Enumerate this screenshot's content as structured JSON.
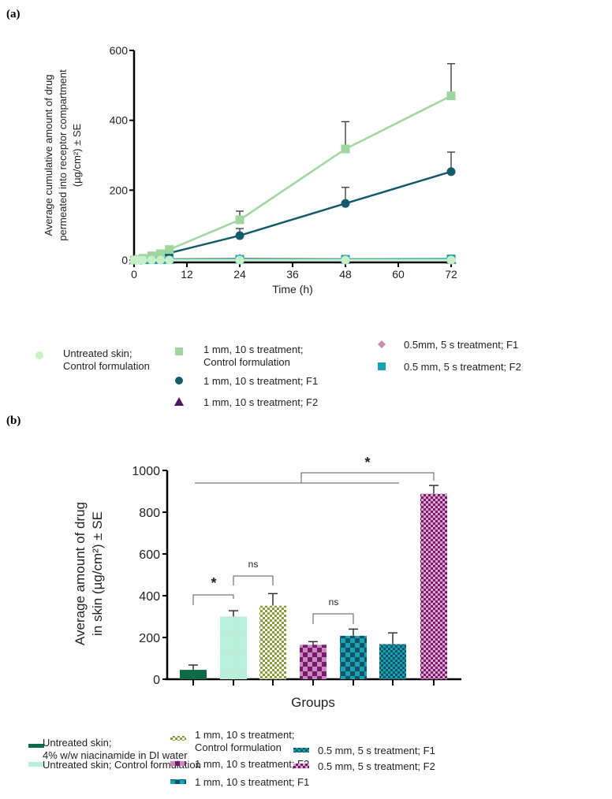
{
  "chart_data": [
    {
      "type": "line",
      "panel_label": "(a)",
      "xlabel": "Time (h)",
      "ylabel_lines": [
        "Average cumulative amount of drug",
        "permeated into receptor compartment",
        "(µg/cm²) ± SE"
      ],
      "xlim": [
        0,
        72
      ],
      "ylim": [
        0,
        600
      ],
      "xticks": [
        "0",
        "12",
        "24",
        "36",
        "48",
        "60",
        "72"
      ],
      "yticks": [
        "0",
        "200",
        "400",
        "600"
      ],
      "x": [
        0,
        1,
        2,
        4,
        6,
        8,
        24,
        48,
        72
      ],
      "series": [
        {
          "name": "Untreated skin; Control formulation",
          "name_lines": [
            "Untreated skin;",
            "Control formulation"
          ],
          "marker": "circle",
          "color": "#c8f0c8",
          "values": [
            0,
            0,
            0,
            0,
            0,
            0,
            0,
            0,
            0
          ],
          "err": [
            0,
            0,
            0,
            0,
            0,
            0,
            0,
            0,
            0
          ]
        },
        {
          "name": "1 mm, 10 s treatment; Control formulation",
          "name_lines": [
            "1 mm, 10 s treatment;",
            "Control formulation"
          ],
          "marker": "square",
          "color": "#9fd6a0",
          "values": [
            0,
            2,
            5,
            12,
            18,
            30,
            115,
            318,
            470
          ],
          "err": [
            0,
            0,
            0,
            0,
            0,
            5,
            25,
            78,
            92
          ]
        },
        {
          "name": "1 mm, 10 s treatment; F1",
          "name_lines": [
            "1 mm, 10 s treatment; F1"
          ],
          "marker": "circle",
          "color": "#135b6b",
          "values": [
            0,
            1,
            2,
            5,
            10,
            20,
            70,
            162,
            253
          ],
          "err": [
            0,
            0,
            0,
            0,
            0,
            8,
            20,
            46,
            56
          ]
        },
        {
          "name": "1 mm, 10 s treatment; F2",
          "name_lines": [
            "1 mm, 10 s treatment; F2"
          ],
          "marker": "triangle",
          "color": "#4a1866",
          "values": [
            0,
            0,
            1,
            1,
            2,
            2,
            3,
            2,
            2
          ],
          "err": [
            0,
            0,
            0,
            0,
            0,
            0,
            0,
            0,
            0
          ]
        },
        {
          "name": "0.5mm, 5 s treatment; F1",
          "name_lines": [
            "0.5mm, 5 s treatment; F1"
          ],
          "marker": "diamond",
          "color": "#c98aaa",
          "values": [
            0,
            0,
            1,
            1,
            1,
            2,
            2,
            2,
            2
          ],
          "err": [
            0,
            0,
            0,
            0,
            0,
            0,
            0,
            0,
            0
          ]
        },
        {
          "name": "0.5 mm, 5 s treatment; F2",
          "name_lines": [
            "0.5 mm, 5 s treatment; F2"
          ],
          "marker": "square",
          "color": "#1aa0b2",
          "values": [
            0,
            0,
            1,
            1,
            1,
            2,
            2,
            2,
            3
          ],
          "err": [
            0,
            0,
            0,
            0,
            0,
            0,
            0,
            0,
            0
          ]
        }
      ],
      "legend": "bottom"
    },
    {
      "type": "bar",
      "panel_label": "(b)",
      "xlabel": "Groups",
      "ylabel_lines": [
        "Average amount of drug",
        "in skin (µg/cm²) ± SE"
      ],
      "ylim": [
        0,
        1000
      ],
      "yticks": [
        "0",
        "200",
        "400",
        "600",
        "800",
        "1000"
      ],
      "categories": [
        "Untreated skin; 4% w/w niacinamide in DI water",
        "Untreated skin; Control formulation",
        "1 mm, 10 s treatment; Control formulation",
        "1 mm, 10 s treatment; F2",
        "1 mm, 10 s treatment; F1",
        "0.5 mm, 5 s treatment; F1",
        "0.5 mm, 5 s treatment; F2"
      ],
      "legend_lines": [
        [
          "Untreated skin;",
          "4% w/w niacinamide in DI water"
        ],
        [
          "Untreated skin; Control formulation"
        ],
        [
          "1 mm, 10 s treatment;",
          "Control formulation"
        ],
        [
          "1 mm, 10 s treatment; F2"
        ],
        [
          "1 mm, 10 s treatment; F1"
        ],
        [
          "0.5 mm, 5 s treatment; F1"
        ],
        [
          "0.5 mm, 5 s treatment; F2"
        ]
      ],
      "values": [
        45,
        300,
        352,
        165,
        208,
        168,
        888
      ],
      "err": [
        23,
        28,
        58,
        15,
        32,
        54,
        40
      ],
      "colors": [
        "#0f6b45",
        "#b6f0de",
        "#8a9a3a",
        "#7a1a6a",
        "#0e6a7a",
        "#0e6a7a",
        "#7a1a6a"
      ],
      "annotations": [
        {
          "text": "*",
          "from": 0,
          "to": 1
        },
        {
          "text": "ns",
          "from": 1,
          "to": 2
        },
        {
          "text": "ns",
          "from": 3,
          "to": 4
        },
        {
          "text": "*",
          "from": "0-5",
          "to": 6
        }
      ],
      "legend": "bottom"
    }
  ]
}
